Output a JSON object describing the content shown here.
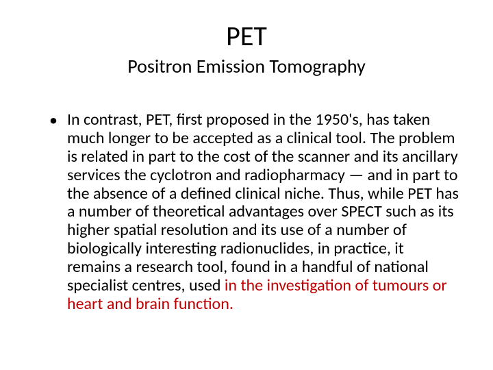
{
  "slide": {
    "title": "PET",
    "subtitle": "Positron Emission Tomography",
    "bullet_glyph": "•",
    "body_black": "In contrast, PET, first proposed in the 1950's, has taken much longer to be accepted as a clinical tool. The problem is related in part to the cost of the scanner and its ancillary services the cyclotron and radiopharmacy — and in part to the absence of a defined clinical niche. Thus, while PET has a number of theoretical advantages over SPECT such as its higher spatial resolution and its use of a number of biologically interesting radionuclides, in practice, it remains a research tool, found in a handful of national specialist centres, used ",
    "body_red": "in the investigation of tumours or heart and brain function."
  },
  "style": {
    "background_color": "#ffffff",
    "title_color": "#000000",
    "body_color": "#000000",
    "highlight_color": "#c00000",
    "title_fontsize": 40,
    "subtitle_fontsize": 28,
    "body_fontsize": 24,
    "font_family": "Calibri"
  }
}
